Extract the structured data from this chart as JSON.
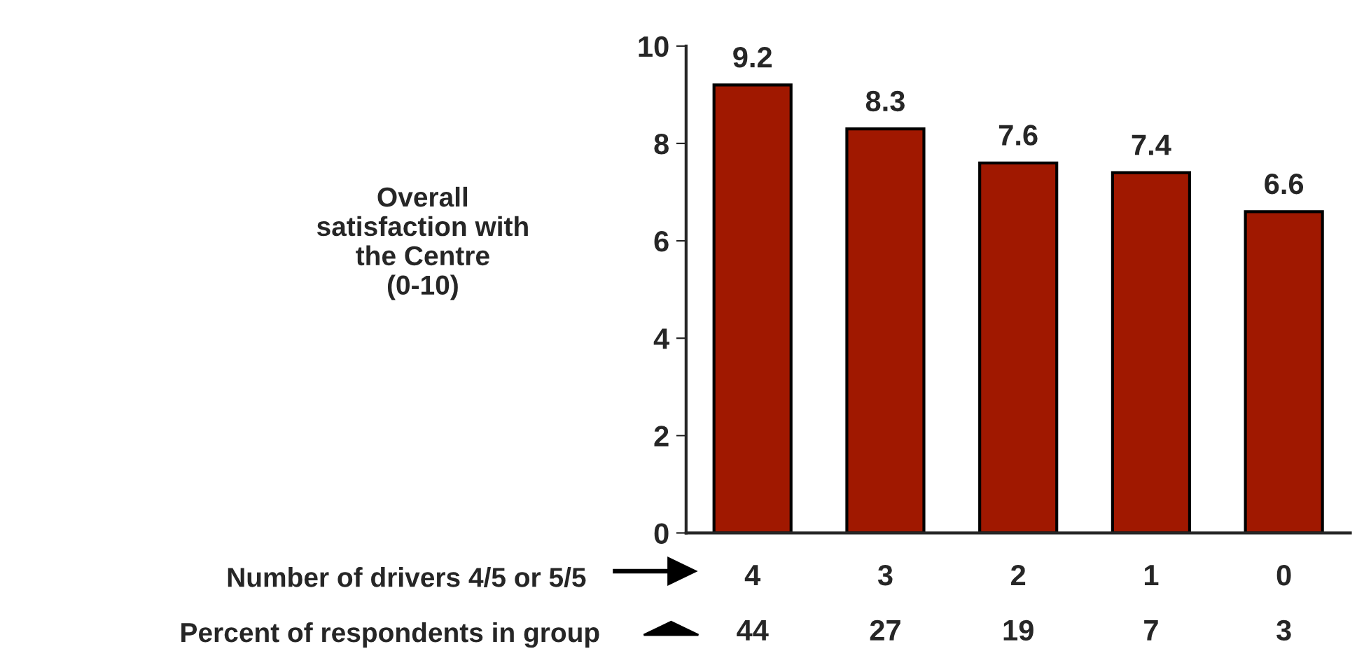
{
  "chart_data": {
    "type": "bar",
    "ylabel": "Overall\nsatisfaction with\nthe Centre\n(0-10)",
    "xlabel": "Number of drivers 4/5 or 5/5",
    "categories": [
      "4",
      "3",
      "2",
      "1",
      "0"
    ],
    "values": [
      9.2,
      8.3,
      7.6,
      7.4,
      6.6
    ],
    "color": "#a01800",
    "ylim": [
      0,
      10
    ],
    "yticks": [
      0,
      2,
      4,
      6,
      8,
      10
    ],
    "data_labels": true,
    "grid": false,
    "legend": false,
    "annotations": [
      "Percent of respondents in group",
      "44",
      "27",
      "19",
      "7",
      "3"
    ]
  }
}
